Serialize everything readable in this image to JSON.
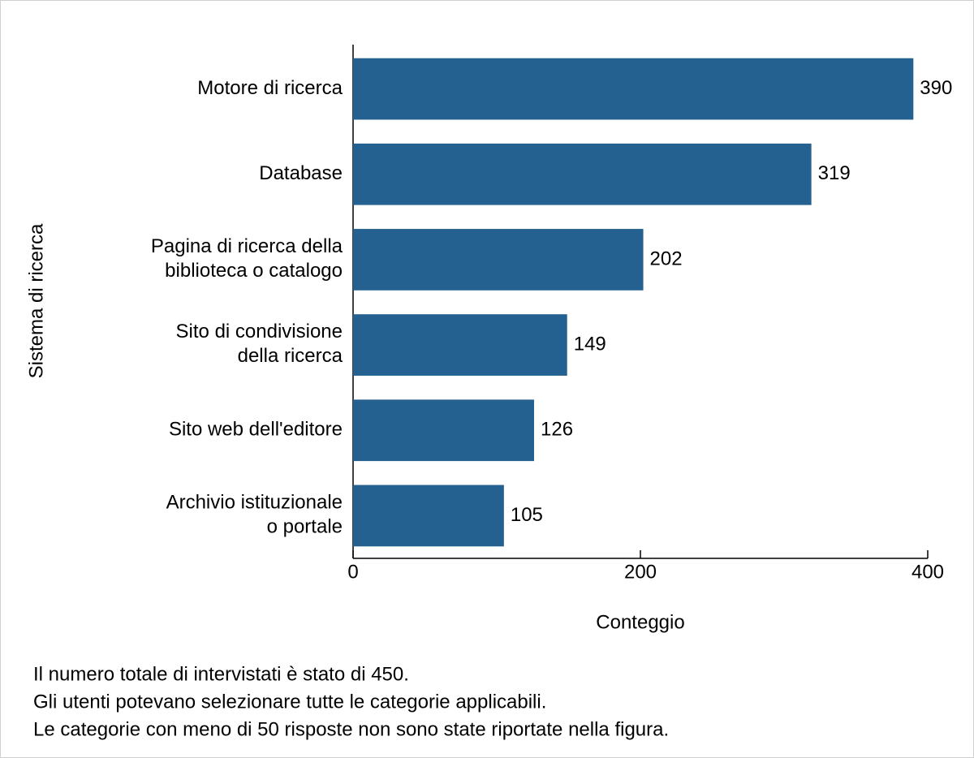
{
  "chart_data": {
    "type": "bar",
    "orientation": "horizontal",
    "categories": [
      "Motore di ricerca",
      "Database",
      "Pagina di ricerca della\nbiblioteca o catalogo",
      "Sito di condivisione\ndella ricerca",
      "Sito web dell'editore",
      "Archivio istituzionale\no portale"
    ],
    "values": [
      390,
      319,
      202,
      149,
      126,
      105
    ],
    "color": "#246191",
    "xlim": [
      0,
      400
    ],
    "xticks": [
      0,
      200,
      400
    ],
    "xlabel": "Conteggio",
    "ylabel": "Sistema di ricerca",
    "notes": [
      "Il numero totale di intervistati è stato di 450.",
      "Gli utenti potevano selezionare tutte le categorie applicabili.",
      "Le categorie con meno di 50 risposte non sono state riportate nella figura."
    ]
  }
}
